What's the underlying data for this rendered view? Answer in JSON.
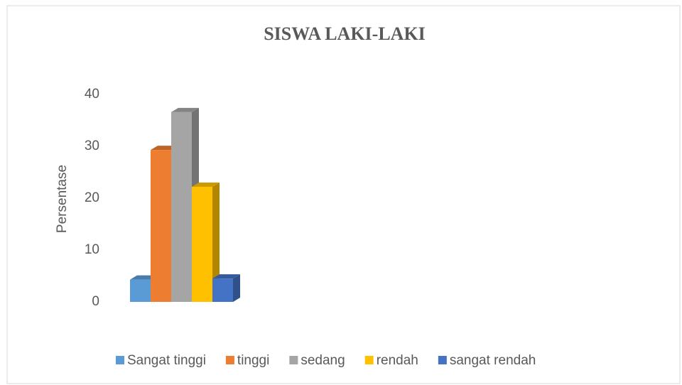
{
  "chart_data": {
    "type": "bar3d",
    "title": "SISWA LAKI-LAKI",
    "y_label": "Persentase",
    "categories": [
      null
    ],
    "series": [
      {
        "name": "Sangat tinggi",
        "color": "#5b9bd5",
        "values": [
          4.3
        ]
      },
      {
        "name": "tinggi",
        "color": "#ed7d31",
        "values": [
          29.3
        ]
      },
      {
        "name": "sedang",
        "color": "#a5a5a5",
        "values": [
          36.6
        ]
      },
      {
        "name": "rendah",
        "color": "#ffc000",
        "values": [
          22.2
        ]
      },
      {
        "name": "sangat rendah",
        "color": "#4472c4",
        "values": [
          4.5
        ]
      }
    ],
    "ylim": [
      0,
      40
    ],
    "yticks": [
      0,
      10,
      20,
      30,
      40
    ],
    "grid": false,
    "legend": "bottom"
  }
}
